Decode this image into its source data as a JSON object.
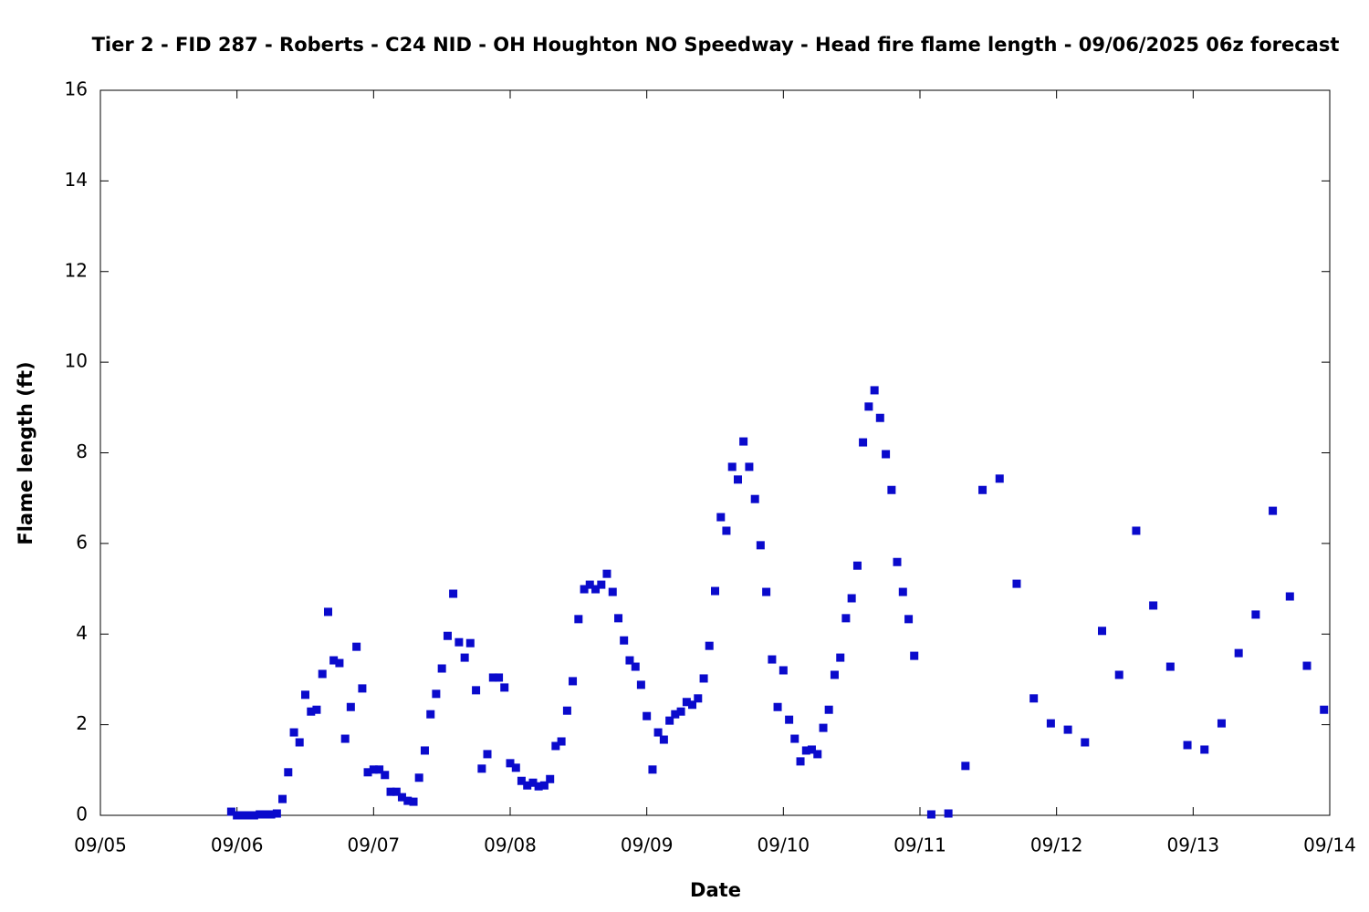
{
  "chart_data": {
    "type": "scatter",
    "title": "Tier 2 - FID 287 - Roberts - C24 NID - OH Houghton NO Speedway - Head fire flame length - 09/06/2025 06z forecast",
    "x_label": "Date",
    "y_label": "Flame length (ft)",
    "xlim": [
      5,
      14
    ],
    "xticks": [
      {
        "value": 5,
        "label": "09/05"
      },
      {
        "value": 6,
        "label": "09/06"
      },
      {
        "value": 7,
        "label": "09/07"
      },
      {
        "value": 8,
        "label": "09/08"
      },
      {
        "value": 9,
        "label": "09/09"
      },
      {
        "value": 10,
        "label": "09/10"
      },
      {
        "value": 11,
        "label": "09/11"
      },
      {
        "value": 12,
        "label": "09/12"
      },
      {
        "value": 13,
        "label": "09/13"
      },
      {
        "value": 14,
        "label": "09/14"
      }
    ],
    "ylim": [
      0,
      16
    ],
    "yticks": [
      0,
      2,
      4,
      6,
      8,
      10,
      12,
      14,
      16
    ],
    "grid": false,
    "series": [
      {
        "color": "#0a0acc",
        "x": [
          5.958,
          6.0,
          6.042,
          6.083,
          6.125,
          6.167,
          6.208,
          6.25,
          6.292,
          6.333,
          6.375,
          6.417,
          6.458,
          6.5,
          6.542,
          6.583,
          6.625,
          6.667,
          6.708,
          6.75,
          6.792,
          6.833,
          6.875,
          6.917,
          6.958,
          7.0,
          7.042,
          7.083,
          7.125,
          7.167,
          7.208,
          7.25,
          7.292,
          7.333,
          7.375,
          7.417,
          7.458,
          7.5,
          7.542,
          7.583,
          7.625,
          7.667,
          7.708,
          7.75,
          7.792,
          7.833,
          7.875,
          7.917,
          7.958,
          8.0,
          8.042,
          8.083,
          8.125,
          8.167,
          8.208,
          8.25,
          8.292,
          8.333,
          8.375,
          8.417,
          8.458,
          8.5,
          8.542,
          8.583,
          8.625,
          8.667,
          8.708,
          8.75,
          8.792,
          8.833,
          8.875,
          8.917,
          8.958,
          9.0,
          9.042,
          9.083,
          9.125,
          9.167,
          9.208,
          9.25,
          9.292,
          9.333,
          9.375,
          9.417,
          9.458,
          9.5,
          9.542,
          9.583,
          9.625,
          9.667,
          9.708,
          9.75,
          9.792,
          9.833,
          9.875,
          9.917,
          9.958,
          10.0,
          10.042,
          10.083,
          10.125,
          10.167,
          10.208,
          10.25,
          10.292,
          10.333,
          10.375,
          10.417,
          10.458,
          10.5,
          10.542,
          10.583,
          10.625,
          10.667,
          10.708,
          10.75,
          10.792,
          10.833,
          10.875,
          10.917,
          10.958,
          11.083,
          11.208,
          11.333,
          11.458,
          11.583,
          11.708,
          11.833,
          11.958,
          12.083,
          12.208,
          12.333,
          12.458,
          12.583,
          12.708,
          12.833,
          12.958,
          13.083,
          13.208,
          13.333,
          13.458,
          13.583,
          13.708,
          13.833,
          13.958
        ],
        "values": [
          0.08,
          0,
          0,
          0,
          0,
          0.02,
          0.02,
          0.02,
          0.04,
          0.36,
          0.95,
          1.83,
          1.61,
          2.66,
          2.29,
          2.33,
          3.12,
          4.49,
          3.42,
          3.36,
          1.69,
          2.39,
          3.72,
          2.8,
          0.95,
          1.01,
          1.01,
          0.89,
          0.52,
          0.52,
          0.4,
          0.32,
          0.3,
          0.83,
          1.43,
          2.23,
          2.68,
          3.24,
          3.96,
          4.89,
          3.82,
          3.48,
          3.8,
          2.76,
          1.03,
          1.35,
          3.04,
          3.04,
          2.82,
          1.15,
          1.05,
          0.76,
          0.66,
          0.72,
          0.64,
          0.66,
          0.8,
          1.53,
          1.63,
          2.31,
          2.96,
          4.33,
          4.99,
          5.09,
          4.99,
          5.09,
          5.33,
          4.93,
          4.35,
          3.86,
          3.42,
          3.28,
          2.88,
          2.19,
          1.01,
          1.83,
          1.67,
          2.09,
          2.23,
          2.29,
          2.5,
          2.44,
          2.58,
          3.02,
          3.74,
          4.95,
          6.58,
          6.28,
          7.69,
          7.41,
          8.25,
          7.69,
          6.98,
          5.96,
          4.93,
          3.44,
          2.39,
          3.2,
          2.11,
          1.69,
          1.19,
          1.43,
          1.45,
          1.35,
          1.93,
          2.33,
          3.1,
          3.48,
          4.35,
          4.79,
          5.51,
          8.23,
          9.02,
          9.38,
          8.77,
          7.97,
          7.18,
          5.59,
          4.93,
          4.33,
          3.52,
          0.02,
          0.04,
          1.09,
          7.18,
          7.43,
          5.11,
          2.58,
          2.03,
          1.89,
          1.61,
          4.07,
          3.1,
          6.28,
          4.63,
          3.28,
          1.55,
          1.45,
          2.03,
          3.58,
          4.43,
          6.72,
          4.83,
          3.3,
          2.33
        ]
      }
    ]
  }
}
